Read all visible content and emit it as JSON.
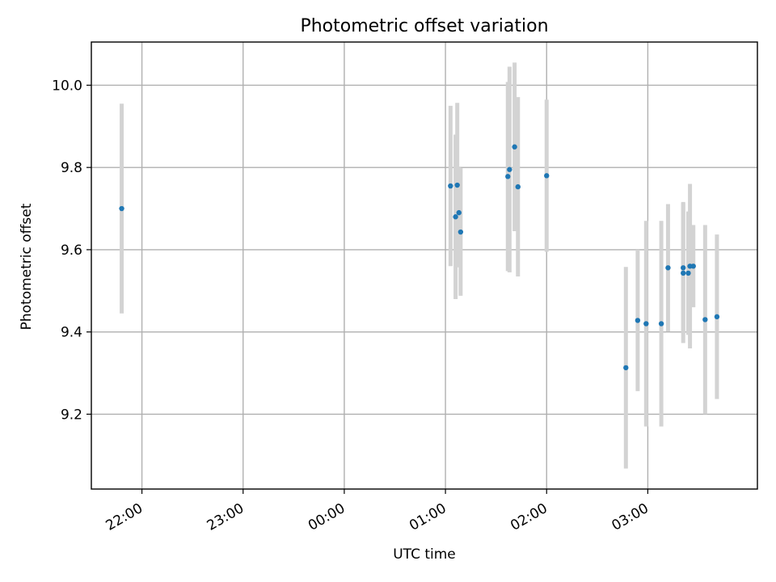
{
  "chart_data": {
    "type": "scatter",
    "title": "Photometric offset variation",
    "xlabel": "UTC time",
    "ylabel": "Photometric offset",
    "x_type": "time",
    "xlim": [
      "21:30",
      "04:05"
    ],
    "ylim": [
      9.018,
      10.105
    ],
    "x_ticks": [
      "22:00",
      "23:00",
      "00:00",
      "01:00",
      "02:00",
      "03:00"
    ],
    "y_ticks": [
      9.2,
      9.4,
      9.6,
      9.8,
      10.0
    ],
    "y_tick_labels": [
      "9.2",
      "9.4",
      "9.6",
      "9.8",
      "10.0"
    ],
    "grid": true,
    "legend": "none",
    "marker_color": "#1f77b4",
    "errorbar_color": "#d3d3d3",
    "series": [
      {
        "points": [
          {
            "t": "21:48",
            "y": 9.7,
            "err": 0.255
          },
          {
            "t": "01:03",
            "y": 9.755,
            "err": 0.195
          },
          {
            "t": "01:06",
            "y": 9.68,
            "err": 0.2
          },
          {
            "t": "01:07",
            "y": 9.757,
            "err": 0.2
          },
          {
            "t": "01:08",
            "y": 9.69,
            "err": 0.11
          },
          {
            "t": "01:09",
            "y": 9.643,
            "err": 0.155
          },
          {
            "t": "01:37",
            "y": 9.778,
            "err": 0.23
          },
          {
            "t": "01:38",
            "y": 9.795,
            "err": 0.25
          },
          {
            "t": "01:41",
            "y": 9.85,
            "err": 0.205
          },
          {
            "t": "01:43",
            "y": 9.753,
            "err": 0.218
          },
          {
            "t": "02:00",
            "y": 9.78,
            "err": 0.185
          },
          {
            "t": "02:47",
            "y": 9.313,
            "err": 0.245
          },
          {
            "t": "02:54",
            "y": 9.428,
            "err": 0.172
          },
          {
            "t": "02:59",
            "y": 9.42,
            "err": 0.25
          },
          {
            "t": "03:08",
            "y": 9.42,
            "err": 0.25
          },
          {
            "t": "03:12",
            "y": 9.556,
            "err": 0.155
          },
          {
            "t": "03:21",
            "y": 9.556,
            "err": 0.16
          },
          {
            "t": "03:21",
            "y": 9.543,
            "err": 0.17
          },
          {
            "t": "03:24",
            "y": 9.543,
            "err": 0.15
          },
          {
            "t": "03:25",
            "y": 9.56,
            "err": 0.2
          },
          {
            "t": "03:27",
            "y": 9.56,
            "err": 0.1
          },
          {
            "t": "03:34",
            "y": 9.43,
            "err": 0.23
          },
          {
            "t": "03:41",
            "y": 9.437,
            "err": 0.2
          }
        ]
      }
    ]
  }
}
